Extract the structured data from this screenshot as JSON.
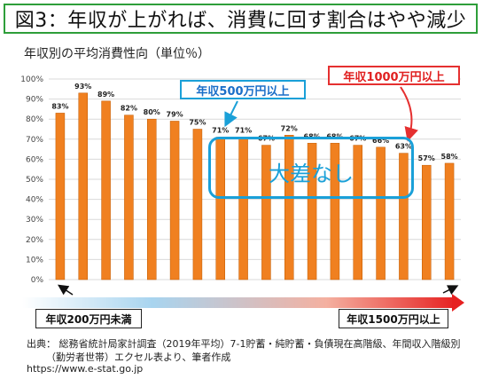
{
  "title": "図3：年収が上がれば、消費に回す割合はやや減少",
  "chart_data": {
    "type": "bar",
    "title": "年収別の平均消費性向（単位％）",
    "ylim": [
      0,
      100
    ],
    "y_ticks": [
      "0%",
      "10%",
      "20%",
      "30%",
      "40%",
      "50%",
      "60%",
      "70%",
      "80%",
      "90%",
      "100%"
    ],
    "grid": true,
    "values": [
      83,
      93,
      89,
      82,
      80,
      79,
      75,
      71,
      71,
      67,
      72,
      68,
      68,
      67,
      66,
      63,
      57,
      58
    ],
    "data_labels": [
      "83%",
      "93%",
      "89%",
      "82%",
      "80%",
      "79%",
      "75%",
      "71%",
      "71%",
      "67%",
      "72%",
      "68%",
      "68%",
      "67%",
      "66%",
      "63%",
      "57%",
      "58%"
    ],
    "bar_color": "#f08020",
    "annotations": {
      "income_500": "年収500万円以上",
      "income_1000": "年収1000万円以上",
      "no_big_difference": "大差なし",
      "lowest_income": "年収200万円未満",
      "highest_income": "年収1500万円以上"
    }
  },
  "colors": {
    "title_border": "#2e9e3a",
    "blue": "#1aa0d8",
    "red": "#e53030"
  },
  "source": {
    "line1": "出典：  総務省統計局家計調査（2019年平均）7-1貯蓄・純貯蓄・負債現在高階級、年間収入階級別",
    "line2": "（勤労者世帯）エクセル表より、筆者作成",
    "line3": "https://www.e-stat.go.jp"
  }
}
